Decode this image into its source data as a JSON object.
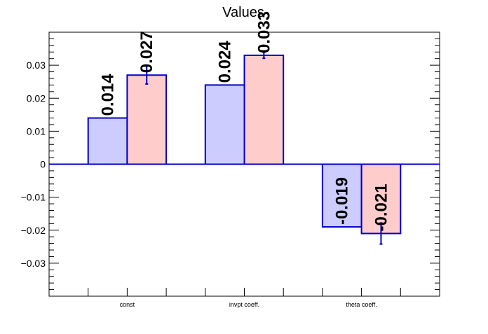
{
  "chart_data": {
    "type": "bar",
    "title": "Values",
    "xlabel": "",
    "ylabel": "",
    "ylim": [
      -0.04,
      0.04
    ],
    "yticks": [
      {
        "value": 0.03,
        "label": "0.03"
      },
      {
        "value": 0.02,
        "label": "0.02"
      },
      {
        "value": 0.01,
        "label": "0.01"
      },
      {
        "value": 0,
        "label": "0"
      },
      {
        "value": -0.01,
        "label": "−0.01"
      },
      {
        "value": -0.02,
        "label": "−0.02"
      },
      {
        "value": -0.03,
        "label": "−0.03"
      }
    ],
    "categories": [
      "const",
      "invpt coeff.",
      "theta coeff."
    ],
    "series": [
      {
        "fill": "#ccccff",
        "edge": "#0000cc",
        "values": [
          0.014,
          0.024,
          -0.019
        ],
        "errors": [
          0,
          0,
          0
        ],
        "labels": [
          "0.014",
          "0.024",
          "-0.019"
        ]
      },
      {
        "fill": "#ffcccc",
        "edge": "#0000cc",
        "values": [
          0.027,
          0.033,
          -0.021
        ],
        "errors": [
          0.0027,
          0.0009,
          0.0032
        ],
        "labels": [
          "0.027",
          "0.033",
          "-0.021"
        ]
      }
    ],
    "grid": false,
    "legend": "none"
  }
}
